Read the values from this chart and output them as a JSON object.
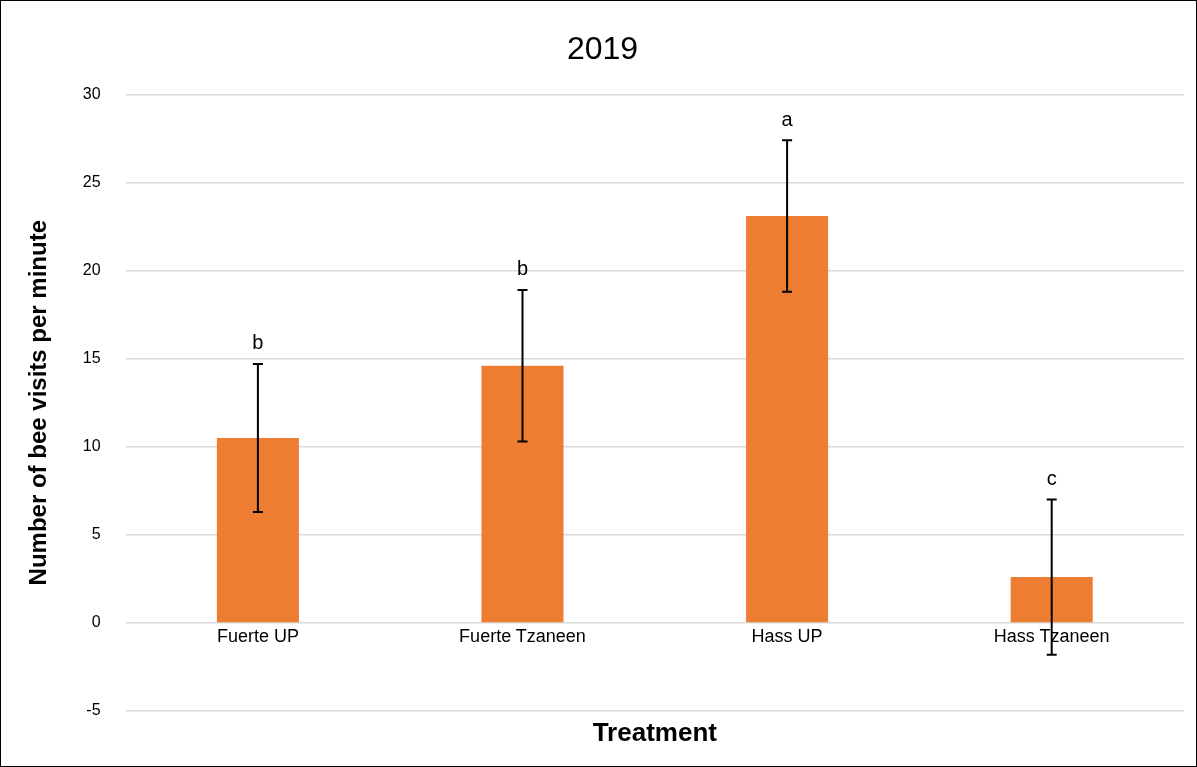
{
  "chart_data": {
    "type": "bar",
    "title": "2019",
    "xlabel": "Treatment",
    "ylabel": "Number of bee visits per minute",
    "categories": [
      "Fuerte UP",
      "Fuerte Tzaneen",
      "Hass UP",
      "Hass Tzaneen"
    ],
    "values": [
      10.5,
      14.6,
      23.1,
      2.6
    ],
    "errors": [
      4.2,
      4.3,
      4.3,
      4.4
    ],
    "color": "#ed7d31",
    "ylim": [
      -5,
      30
    ],
    "yticks": [
      -5,
      0,
      5,
      10,
      15,
      20,
      25,
      30
    ],
    "grid": "y",
    "legend": false,
    "annotations": [
      "b",
      "b",
      "a",
      "c"
    ]
  }
}
